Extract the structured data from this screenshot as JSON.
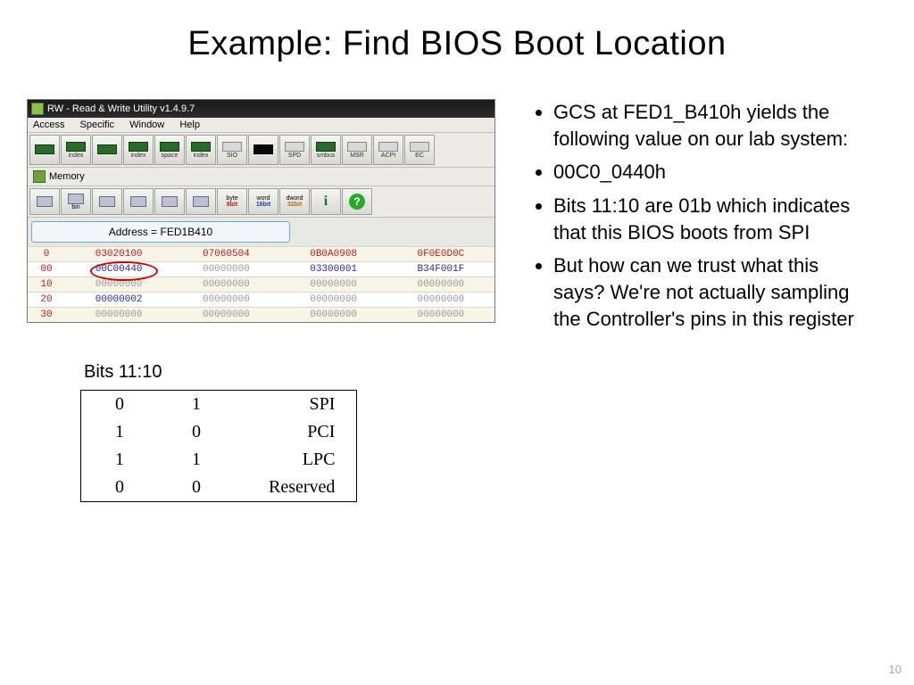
{
  "title": "Example: Find BIOS Boot Location",
  "bullets": [
    "GCS at FED1_B410h yields the following value on our lab system:",
    "00C0_0440h",
    "Bits 11:10 are 01b which indicates that this BIOS boots from SPI",
    "But how can we trust what this says?  We're not actually sampling the Controller's pins in this register"
  ],
  "rw": {
    "title": "RW - Read & Write Utility v1.4.9.7",
    "menus": [
      "Access",
      "Specific",
      "Window",
      "Help"
    ],
    "toolbar1_labels": [
      "",
      "index",
      "",
      "index",
      "space",
      "index",
      "SIO",
      "",
      "SPD",
      "smbus",
      "MSR",
      "ACPI",
      "EC"
    ],
    "panel_title": "Memory",
    "toolbar2_labels": [
      "",
      "bin",
      "",
      "",
      "",
      "",
      "byte|8bit",
      "word|16bit",
      "dword|32bit",
      "i",
      "?"
    ],
    "address_label": "Address = FED1B410",
    "hex_header": [
      "0",
      "03020100",
      "07060504",
      "0B0A0908",
      "0F0E0D0C"
    ],
    "hex_rows": [
      {
        "addr": "00",
        "cells": [
          "00C00440",
          "00000000",
          "03300001",
          "B34F001F"
        ],
        "circle": 0,
        "blue": [
          0,
          2,
          3
        ]
      },
      {
        "addr": "10",
        "cells": [
          "00000000",
          "00000000",
          "00000000",
          "00000000"
        ],
        "blue": []
      },
      {
        "addr": "20",
        "cells": [
          "00000002",
          "00000000",
          "00000000",
          "00000000"
        ],
        "blue": [
          0
        ]
      },
      {
        "addr": "30",
        "cells": [
          "00000000",
          "00000000",
          "00000000",
          "00000000"
        ],
        "blue": []
      }
    ]
  },
  "bits": {
    "caption": "Bits 11:10",
    "rows": [
      [
        "0",
        "1",
        "SPI"
      ],
      [
        "1",
        "0",
        "PCI"
      ],
      [
        "1",
        "1",
        "LPC"
      ],
      [
        "0",
        "0",
        "Reserved"
      ]
    ]
  },
  "pagenum": "10",
  "colors": {
    "title_bg": "#1a1a1a",
    "panel_bg": "#eceae6",
    "row_alt": "#f8f5e7",
    "red": "#b02020",
    "blue": "#2a2a9a",
    "gray": "#9a9a9a",
    "circle": "#c00000",
    "addr_border": "#6fa7d6"
  }
}
